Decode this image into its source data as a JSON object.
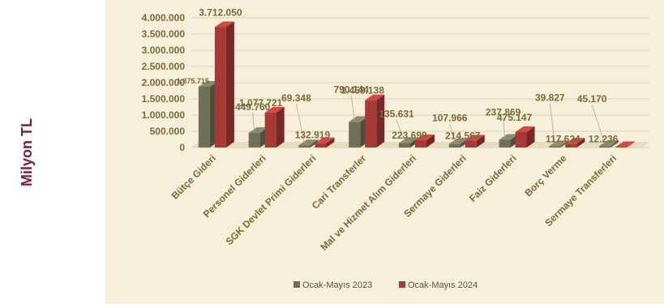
{
  "side_label": "Milyon TL",
  "colors": {
    "background": "#f6efd9",
    "series_2023": "#6e7057",
    "series_2024": "#a83a36",
    "text": "#7a6a3a",
    "grid": "#ddd3b4"
  },
  "chart_data": {
    "type": "bar",
    "title": "",
    "xlabel": "",
    "ylabel": "Milyon TL",
    "ylim": [
      0,
      4000000
    ],
    "yticks": [
      "0",
      "500.000",
      "1.000.000",
      "1.500.000",
      "2.000.000",
      "2.500.000",
      "3.000.000",
      "3.500.000",
      "4.000.000"
    ],
    "grid": true,
    "legend_position": "bottom",
    "categories": [
      "Bütçe Gideri",
      "Personel Giderleri",
      "SGK Devlet Primi Giderleri",
      "Cari Transferler",
      "Mal ve Hizmet Alım Giderleri",
      "Sermaye Giderleri",
      "Faiz Giderleri",
      "Borç Verme",
      "Sermaye Transferleri"
    ],
    "series": [
      {
        "name": "Ocak-Mayıs 2023",
        "values": [
          1875715,
          449760,
          69348,
          790144,
          135631,
          107966,
          237869,
          39827,
          45170
        ],
        "labels": [
          "1.875.715",
          "449.760",
          "69.348",
          "790.144",
          "135.631",
          "107.966",
          "237.869",
          "39.827",
          "45.170"
        ]
      },
      {
        "name": "Ocak-Mayıs 2024",
        "values": [
          3712050,
          1077721,
          132919,
          1458138,
          223699,
          214567,
          475147,
          117624,
          12236
        ],
        "labels": [
          "3.712.050",
          "1.077.721",
          "132.919",
          "1.458.138",
          "223.699",
          "214.567",
          "475.147",
          "117.624",
          "12.236"
        ]
      }
    ]
  }
}
